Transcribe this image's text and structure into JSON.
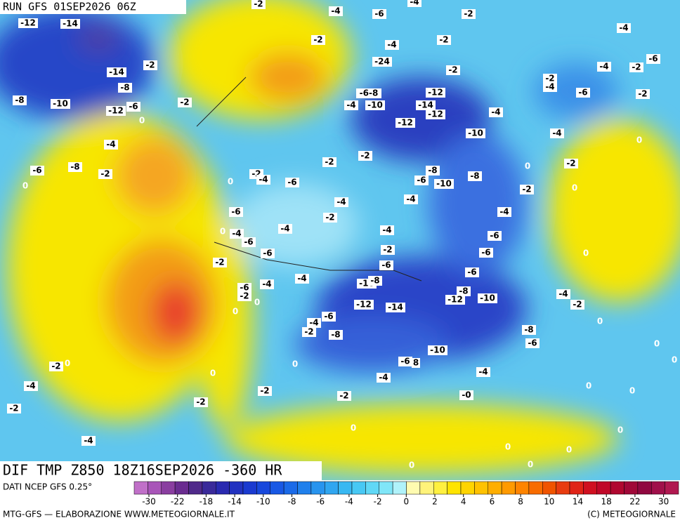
{
  "header": {
    "run": "RUN GFS 01SEP2026 06Z"
  },
  "map": {
    "title": "DIF TMP Z850 18Z16SEP2026 -360 HR",
    "contour_labels": [
      "-12",
      "-14",
      "-2",
      "-4",
      "-6",
      "-4",
      "-2",
      "-4",
      "-2",
      "-4",
      "-2",
      "-14",
      "-2",
      "-8",
      "-24",
      "-2",
      "-4",
      "-2",
      "-6",
      "-2",
      "-4",
      "-8",
      "-10",
      "-12",
      "-6",
      "-2",
      "0",
      "-6-8",
      "-12",
      "-6",
      "-2",
      "-4",
      "-10",
      "-14",
      "-12",
      "-4",
      "-12",
      "-10",
      "-4",
      "0",
      "-4",
      "-2",
      "-2",
      "-6",
      "-8",
      "-2",
      "0",
      "-2",
      "-4",
      "-6",
      "0",
      "-8",
      "-6",
      "-10",
      "-8",
      "0",
      "-2",
      "-2",
      "0",
      "-4",
      "-4",
      "-2",
      "-6",
      "-4",
      "0",
      "-4",
      "-6",
      "-4",
      "-4",
      "-6",
      "-2",
      "-6",
      "-6",
      "0",
      "-2",
      "-6",
      "-6",
      "-4",
      "-10",
      "-8",
      "-4",
      "-6",
      "-8",
      "-4",
      "-2",
      "0",
      "-12",
      "-14",
      "-12",
      "-10",
      "-2",
      "0",
      "-6",
      "-4",
      "-2",
      "-8",
      "-8",
      "-6",
      "0",
      "0",
      "-10",
      "-2",
      "0",
      "0",
      "-6",
      "8",
      "-4",
      "0",
      "-4",
      "0",
      "-4",
      "-2",
      "0",
      "0",
      "-0",
      "-2",
      "-2",
      "-2",
      "0",
      "0",
      "-4",
      "0",
      "0",
      "0",
      "0"
    ]
  },
  "colorbar": {
    "ticks": [
      -30,
      -22,
      -18,
      -14,
      -10,
      -8,
      -6,
      -4,
      -2,
      0,
      2,
      4,
      6,
      8,
      10,
      14,
      18,
      22,
      30
    ]
  },
  "footer": {
    "source": "DATI NCEP GFS 0.25°",
    "credit": "MTG-GFS — ELABORAZIONE WWW.METEOGIORNALE.IT",
    "copyright": "(C) METEOGIORNALE"
  }
}
